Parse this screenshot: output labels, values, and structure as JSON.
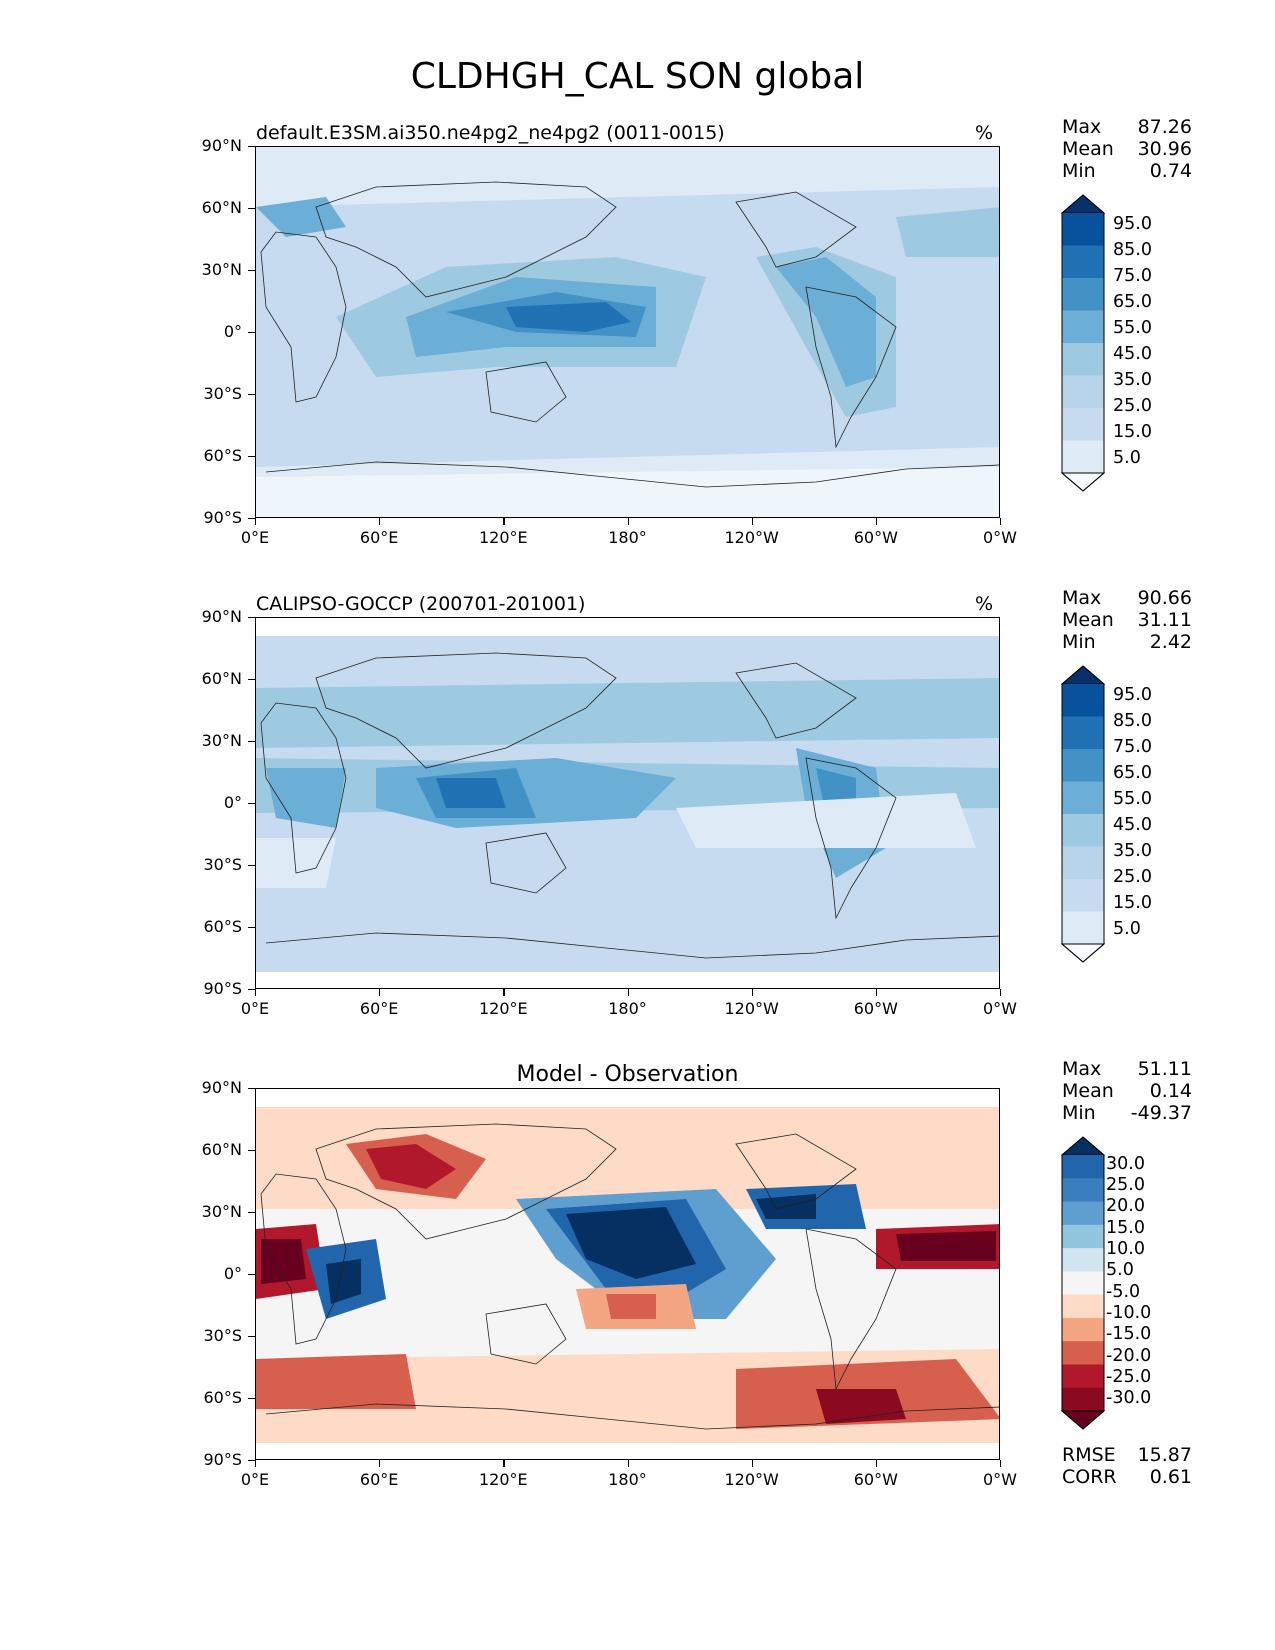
{
  "figure": {
    "title": "CLDHGH_CAL SON global"
  },
  "axes": {
    "lat_ticks": [
      "90°N",
      "60°N",
      "30°N",
      "0°",
      "30°S",
      "60°S",
      "90°S"
    ],
    "lon_ticks": [
      "0°E",
      "60°E",
      "120°E",
      "180°",
      "120°W",
      "60°W",
      "0°W"
    ]
  },
  "panels": [
    {
      "title": "default.E3SM.ai350.ne4pg2_ne4pg2 (0011-0015)",
      "units": "%",
      "stats": [
        {
          "label": "Max",
          "value": "87.26"
        },
        {
          "label": "Mean",
          "value": "30.96"
        },
        {
          "label": "Min",
          "value": "0.74"
        }
      ],
      "colorbar": {
        "labels": [
          "95.0",
          "85.0",
          "75.0",
          "65.0",
          "55.0",
          "45.0",
          "35.0",
          "25.0",
          "15.0",
          "5.0"
        ],
        "colors": [
          "#08306b",
          "#08519c",
          "#2171b5",
          "#4292c6",
          "#6baed6",
          "#9ecae1",
          "#b7d4ea",
          "#c6dbef",
          "#deebf7",
          "#f7fbff"
        ]
      }
    },
    {
      "title": "CALIPSO-GOCCP (200701-201001)",
      "units": "%",
      "stats": [
        {
          "label": "Max",
          "value": "90.66"
        },
        {
          "label": "Mean",
          "value": "31.11"
        },
        {
          "label": "Min",
          "value": "2.42"
        }
      ],
      "colorbar": {
        "labels": [
          "95.0",
          "85.0",
          "75.0",
          "65.0",
          "55.0",
          "45.0",
          "35.0",
          "25.0",
          "15.0",
          "5.0"
        ],
        "colors": [
          "#08306b",
          "#08519c",
          "#2171b5",
          "#4292c6",
          "#6baed6",
          "#9ecae1",
          "#b7d4ea",
          "#c6dbef",
          "#deebf7",
          "#f7fbff"
        ]
      }
    },
    {
      "title": "Model - Observation",
      "units": "",
      "stats": [
        {
          "label": "Max",
          "value": "51.11"
        },
        {
          "label": "Mean",
          "value": "0.14"
        },
        {
          "label": "Min",
          "value": "-49.37"
        }
      ],
      "extra_stats": [
        {
          "label": "RMSE",
          "value": "15.87"
        },
        {
          "label": "CORR",
          "value": "0.61"
        }
      ],
      "colorbar": {
        "labels": [
          "30.0",
          "25.0",
          "20.0",
          "15.0",
          "10.0",
          "5.0",
          "-5.0",
          "-10.0",
          "-15.0",
          "-20.0",
          "-25.0",
          "-30.0"
        ],
        "colors": [
          "#053061",
          "#2166ac",
          "#3a7ebd",
          "#5e9fcf",
          "#92c5de",
          "#d1e5f0",
          "#f5f5f5",
          "#fddbc7",
          "#f4a582",
          "#d6604d",
          "#b2182b",
          "#8b0a1f",
          "#67001f"
        ]
      }
    }
  ]
}
